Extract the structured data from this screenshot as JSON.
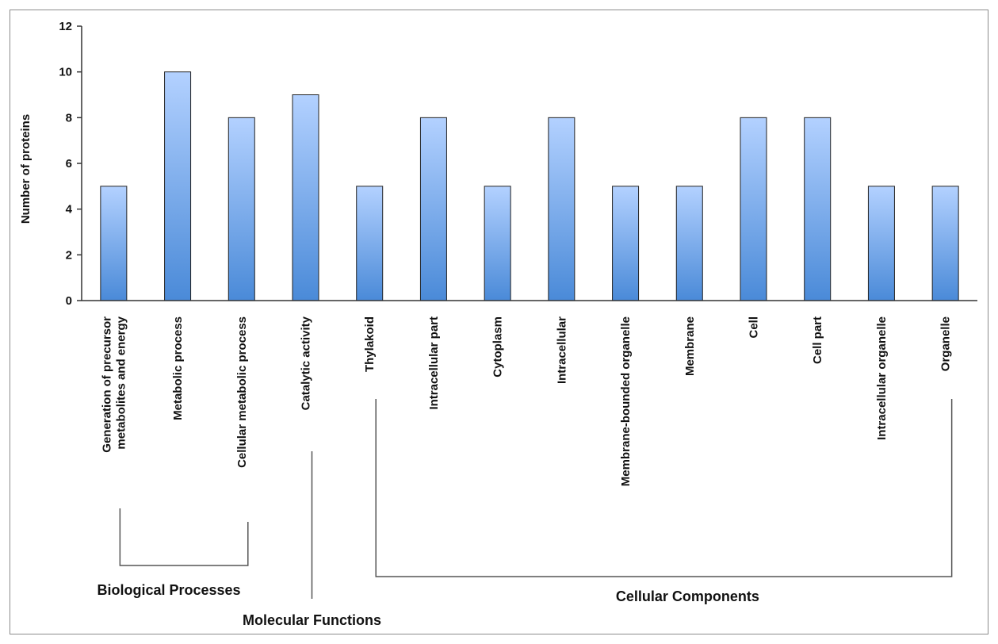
{
  "chart_data": {
    "type": "bar",
    "ylabel": "Number of proteins",
    "xlabel": "",
    "ylim": [
      0,
      12
    ],
    "yticks": [
      "0",
      "2",
      "4",
      "6",
      "8",
      "10",
      "12"
    ],
    "grid": false,
    "legend": "none",
    "bar_color_top": "#b3d1ff",
    "bar_color_bottom": "#4a8ad8",
    "categories": [
      "Generation of precursor metabolites and energy",
      "Metabolic process",
      "Cellular metabolic process",
      "Catalytic activity",
      "Thylakoid",
      "Intracellular part",
      "Cytoplasm",
      "Intracellular",
      "Membrane-bounded organelle",
      "Membrane",
      "Cell",
      "Cell part",
      "Intracellular organelle",
      "Organelle"
    ],
    "category_lines": [
      [
        "Generation of precursor",
        "metabolites and energy"
      ],
      [
        "Metabolic process"
      ],
      [
        "Cellular metabolic process"
      ],
      [
        "Catalytic activity"
      ],
      [
        "Thylakoid"
      ],
      [
        "Intracellular part"
      ],
      [
        "Cytoplasm"
      ],
      [
        "Intracellular"
      ],
      [
        "Membrane-bounded organelle"
      ],
      [
        "Membrane"
      ],
      [
        "Cell"
      ],
      [
        "Cell part"
      ],
      [
        "Intracellular organelle"
      ],
      [
        "Organelle"
      ]
    ],
    "values": [
      5,
      10,
      8,
      9,
      5,
      8,
      5,
      8,
      5,
      5,
      8,
      8,
      5,
      5
    ],
    "groups": [
      {
        "label": "Biological Processes",
        "from": 0,
        "to": 2
      },
      {
        "label": "Molecular Functions",
        "from": 3,
        "to": 3
      },
      {
        "label": "Cellular Components",
        "from": 4,
        "to": 13
      }
    ]
  }
}
